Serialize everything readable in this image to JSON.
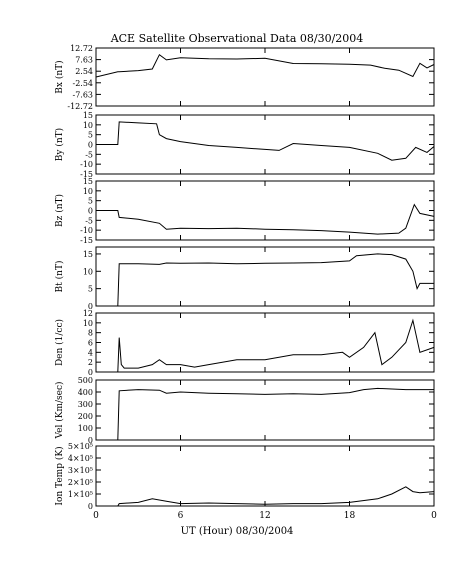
{
  "title": "ACE Satellite Observational Data   08/30/2004",
  "xlabel": "UT (Hour)   08/30/2004",
  "x_ticks": [
    "0",
    "6",
    "12",
    "18",
    "0"
  ],
  "chart_data": [
    {
      "type": "line",
      "ylabel": "Bx (nT)",
      "ylim": [
        -12.72,
        12.72
      ],
      "y_ticks": [
        "12.72",
        "7.63",
        "2.54",
        "-2.54",
        "-7.63",
        "-12.72"
      ],
      "y_tick_values": [
        12.72,
        7.63,
        2.54,
        -2.54,
        -7.63,
        -12.72
      ],
      "x": [
        0,
        1.55,
        1.65,
        3.0,
        4.0,
        4.5,
        5.0,
        6.0,
        8.0,
        10.0,
        12.0,
        14.0,
        16.0,
        18.0,
        19.5,
        20.5,
        21.5,
        22.5,
        23.0,
        23.5,
        24.0
      ],
      "values": [
        0,
        2.3,
        2.3,
        2.8,
        3.5,
        9.8,
        7.5,
        8.4,
        8.0,
        7.9,
        8.2,
        5.9,
        5.8,
        5.6,
        5.2,
        3.8,
        3.0,
        0.2,
        6.0,
        4.0,
        5.5
      ]
    },
    {
      "type": "line",
      "ylabel": "By (nT)",
      "ylim": [
        -15,
        15
      ],
      "y_ticks": [
        "15",
        "10",
        "5",
        "0",
        "-5",
        "-10",
        "-15"
      ],
      "y_tick_values": [
        15,
        10,
        5,
        0,
        -5,
        -10,
        -15
      ],
      "x": [
        0,
        1.55,
        1.65,
        3.0,
        4.3,
        4.5,
        5.0,
        6.0,
        8.0,
        10.0,
        12.0,
        13.0,
        14.0,
        16.0,
        18.0,
        20.0,
        21.0,
        22.0,
        22.7,
        23.5,
        24.0
      ],
      "values": [
        0,
        0,
        11.5,
        11.0,
        10.5,
        5.0,
        3.0,
        1.5,
        -0.5,
        -1.5,
        -2.5,
        -3.0,
        0.5,
        -0.5,
        -1.5,
        -4.5,
        -8.0,
        -7.0,
        -1.5,
        -4.0,
        -1.0
      ]
    },
    {
      "type": "line",
      "ylabel": "Bz (nT)",
      "ylim": [
        -15,
        15
      ],
      "y_ticks": [
        "15",
        "10",
        "5",
        "0",
        "-5",
        "-10",
        "-15"
      ],
      "y_tick_values": [
        15,
        10,
        5,
        0,
        -5,
        -10,
        -15
      ],
      "x": [
        0,
        1.55,
        1.65,
        3.0,
        4.5,
        5.0,
        6.0,
        8.0,
        10.0,
        12.0,
        14.0,
        16.0,
        18.0,
        20.0,
        21.5,
        22.0,
        22.6,
        23.0,
        24.0
      ],
      "values": [
        0,
        0,
        -3.5,
        -4.5,
        -6.5,
        -9.5,
        -9.0,
        -9.2,
        -9.0,
        -9.5,
        -9.8,
        -10.2,
        -11.0,
        -12.0,
        -11.5,
        -9.0,
        3.0,
        -1.5,
        -3.0
      ]
    },
    {
      "type": "line",
      "ylabel": "Bt (nT)",
      "ylim": [
        0,
        17
      ],
      "y_ticks": [
        "15",
        "10",
        "5",
        "0"
      ],
      "y_tick_values": [
        15,
        10,
        5,
        0
      ],
      "x": [
        0,
        1.55,
        1.65,
        3.0,
        4.5,
        5.0,
        6.0,
        8.0,
        10.0,
        12.0,
        14.0,
        16.0,
        18.0,
        18.5,
        20.0,
        21.0,
        22.0,
        22.5,
        22.8,
        23.0,
        24.0
      ],
      "values": [
        0,
        0,
        12.2,
        12.2,
        12.0,
        12.4,
        12.3,
        12.4,
        12.2,
        12.3,
        12.4,
        12.5,
        13.0,
        14.5,
        15.0,
        14.8,
        13.5,
        10.0,
        5.0,
        6.5,
        6.5
      ]
    },
    {
      "type": "line",
      "ylabel": "Den (1/cc)",
      "ylim": [
        0,
        12
      ],
      "y_ticks": [
        "12",
        "10",
        "8",
        "6",
        "4",
        "2",
        "0"
      ],
      "y_tick_values": [
        12,
        10,
        8,
        6,
        4,
        2,
        0
      ],
      "x": [
        0,
        1.55,
        1.65,
        1.8,
        2.0,
        3.0,
        4.0,
        4.5,
        5.0,
        6.0,
        7.0,
        8.0,
        10.0,
        12.0,
        14.0,
        16.0,
        17.5,
        18.0,
        19.0,
        19.8,
        20.3,
        21.0,
        22.0,
        22.5,
        23.0,
        24.0
      ],
      "values": [
        0,
        0,
        7.0,
        1.5,
        0.8,
        0.8,
        1.5,
        2.5,
        1.5,
        1.5,
        1.0,
        1.5,
        2.5,
        2.5,
        3.5,
        3.5,
        4.0,
        3.0,
        5.0,
        8.0,
        1.5,
        3.0,
        6.0,
        10.5,
        4.0,
        5.0
      ]
    },
    {
      "type": "line",
      "ylabel": "Vel (Km/sec)",
      "ylim": [
        0,
        500
      ],
      "y_ticks": [
        "500",
        "400",
        "300",
        "200",
        "100",
        "0"
      ],
      "y_tick_values": [
        500,
        400,
        300,
        200,
        100,
        0
      ],
      "x": [
        0,
        1.55,
        1.65,
        3.0,
        4.5,
        5.0,
        6.0,
        8.0,
        10.0,
        12.0,
        14.0,
        16.0,
        18.0,
        19.0,
        20.0,
        22.0,
        24.0
      ],
      "values": [
        0,
        0,
        410,
        420,
        415,
        390,
        400,
        390,
        385,
        380,
        385,
        380,
        395,
        420,
        430,
        420,
        420
      ]
    },
    {
      "type": "line",
      "ylabel": "Ion Temp (K)",
      "ylim": [
        0,
        500000
      ],
      "y_ticks": [
        "5×10⁵",
        "4×10⁵",
        "3×10⁵",
        "2×10⁵",
        "1×10⁵",
        "0"
      ],
      "y_tick_values": [
        500000,
        400000,
        300000,
        200000,
        100000,
        0
      ],
      "x": [
        0,
        1.55,
        1.65,
        3.0,
        4.0,
        5.0,
        6.0,
        8.0,
        10.0,
        12.0,
        14.0,
        16.0,
        18.0,
        20.0,
        21.0,
        22.0,
        22.5,
        23.0,
        24.0
      ],
      "values": [
        0,
        0,
        20000,
        30000,
        60000,
        40000,
        20000,
        25000,
        20000,
        15000,
        20000,
        20000,
        30000,
        60000,
        100000,
        160000,
        120000,
        110000,
        120000
      ]
    }
  ]
}
